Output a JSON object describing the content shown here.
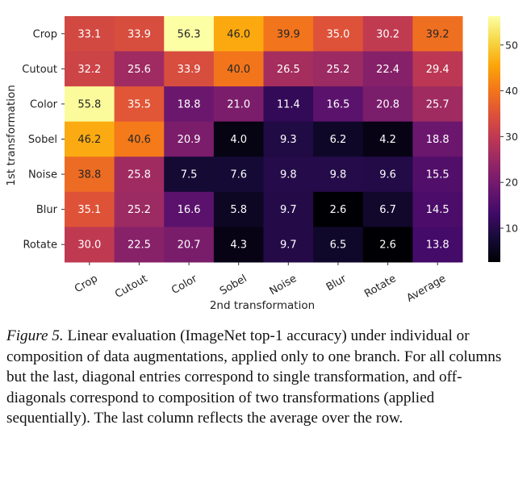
{
  "chart_data": {
    "type": "heatmap",
    "row_categories": [
      "Crop",
      "Cutout",
      "Color",
      "Sobel",
      "Noise",
      "Blur",
      "Rotate"
    ],
    "col_categories": [
      "Crop",
      "Cutout",
      "Color",
      "Sobel",
      "Noise",
      "Blur",
      "Rotate",
      "Average"
    ],
    "values": [
      [
        33.1,
        33.9,
        56.3,
        46.0,
        39.9,
        35.0,
        30.2,
        39.2
      ],
      [
        32.2,
        25.6,
        33.9,
        40.0,
        26.5,
        25.2,
        22.4,
        29.4
      ],
      [
        55.8,
        35.5,
        18.8,
        21.0,
        11.4,
        16.5,
        20.8,
        25.7
      ],
      [
        46.2,
        40.6,
        20.9,
        4.0,
        9.3,
        6.2,
        4.2,
        18.8
      ],
      [
        38.8,
        25.8,
        7.5,
        7.6,
        9.8,
        9.8,
        9.6,
        15.5
      ],
      [
        35.1,
        25.2,
        16.6,
        5.8,
        9.7,
        2.6,
        6.7,
        14.5
      ],
      [
        30.0,
        22.5,
        20.7,
        4.3,
        9.7,
        6.5,
        2.6,
        13.8
      ]
    ],
    "value_labels": [
      [
        "33.1",
        "33.9",
        "56.3",
        "46.0",
        "39.9",
        "35.0",
        "30.2",
        "39.2"
      ],
      [
        "32.2",
        "25.6",
        "33.9",
        "40.0",
        "26.5",
        "25.2",
        "22.4",
        "29.4"
      ],
      [
        "55.8",
        "35.5",
        "18.8",
        "21.0",
        "11.4",
        "16.5",
        "20.8",
        "25.7"
      ],
      [
        "46.2",
        "40.6",
        "20.9",
        "4.0",
        "9.3",
        "6.2",
        "4.2",
        "18.8"
      ],
      [
        "38.8",
        "25.8",
        "7.5",
        "7.6",
        "9.8",
        "9.8",
        "9.6",
        "15.5"
      ],
      [
        "35.1",
        "25.2",
        "16.6",
        "5.8",
        "9.7",
        "2.6",
        "6.7",
        "14.5"
      ],
      [
        "30.0",
        "22.5",
        "20.7",
        "4.3",
        "9.7",
        "6.5",
        "2.6",
        "13.8"
      ]
    ],
    "xlabel": "2nd transformation",
    "ylabel": "1st transformation",
    "colormap": "inferno",
    "color_range": [
      2.6,
      56.3
    ],
    "colorbar_ticks": [
      10,
      20,
      30,
      40,
      50
    ],
    "colorbar_tick_labels": [
      "10",
      "20",
      "30",
      "40",
      "50"
    ],
    "colorbar_position": "right",
    "grid": false
  },
  "caption": {
    "figure_label": "Figure 5.",
    "text": " Linear evaluation (ImageNet top-1 accuracy) under individual or composition of data augmentations, applied only to one branch. For all columns but the last, diagonal entries correspond to single transformation, and off-diagonals correspond to composition of two transformations (applied sequentially). The last column reflects the average over the row."
  }
}
